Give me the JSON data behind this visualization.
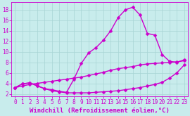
{
  "bg_color": "#c8ecec",
  "grid_color": "#a8d4d4",
  "line_color": "#cc00cc",
  "xlabel": "Windchill (Refroidissement éolien,°C)",
  "xlim": [
    -0.5,
    23.5
  ],
  "ylim": [
    1.5,
    19.5
  ],
  "xticks": [
    0,
    1,
    2,
    3,
    4,
    5,
    6,
    7,
    8,
    9,
    10,
    11,
    12,
    13,
    14,
    15,
    16,
    17,
    18,
    19,
    20,
    21,
    22,
    23
  ],
  "yticks": [
    2,
    4,
    6,
    8,
    10,
    12,
    14,
    16,
    18
  ],
  "line_big_x": [
    0,
    1,
    2,
    3,
    4,
    5,
    6,
    7,
    8,
    9,
    10,
    11,
    12,
    13,
    14,
    15,
    16,
    17,
    18,
    19,
    20,
    21,
    22,
    23
  ],
  "line_big_y": [
    3.2,
    3.9,
    4.1,
    3.6,
    3.0,
    2.8,
    2.5,
    2.3,
    4.8,
    7.8,
    9.8,
    10.8,
    12.2,
    14.0,
    16.5,
    18.0,
    18.5,
    17.0,
    13.5,
    13.2,
    9.5,
    8.2,
    8.0,
    8.5
  ],
  "line_diag_x": [
    0,
    1,
    2,
    3,
    4,
    5,
    6,
    7,
    8,
    9,
    10,
    11,
    12,
    13,
    14,
    15,
    16,
    17,
    18,
    19,
    20,
    21,
    22,
    23
  ],
  "line_diag_y": [
    3.2,
    3.5,
    3.8,
    4.0,
    4.2,
    4.4,
    4.6,
    4.8,
    5.0,
    5.2,
    5.5,
    5.8,
    6.1,
    6.5,
    6.8,
    7.0,
    7.2,
    7.5,
    7.7,
    7.8,
    7.9,
    8.0,
    8.1,
    8.3
  ],
  "line_low_x": [
    0,
    1,
    2,
    3,
    4,
    5,
    6,
    7,
    8,
    9,
    10,
    11,
    12,
    13,
    14,
    15,
    16,
    17,
    18,
    19,
    20,
    21,
    22,
    23
  ],
  "line_low_y": [
    3.2,
    3.9,
    4.1,
    3.5,
    3.0,
    2.6,
    2.4,
    2.2,
    2.2,
    2.2,
    2.2,
    2.3,
    2.4,
    2.5,
    2.6,
    2.8,
    3.0,
    3.2,
    3.5,
    3.8,
    4.2,
    5.0,
    6.0,
    7.5
  ],
  "markersize": 2.5,
  "linewidth": 1.0,
  "tick_fontsize": 5.5,
  "xlabel_fontsize": 6.5
}
